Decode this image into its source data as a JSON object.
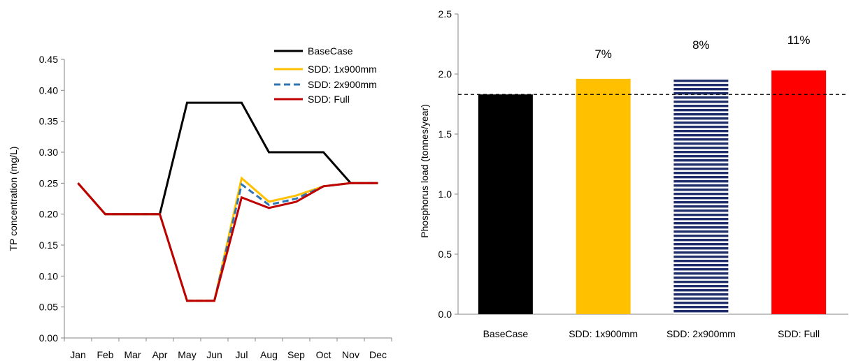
{
  "chart_data": [
    {
      "type": "line",
      "ylabel": "TP concentration (mg/L)",
      "ylim": [
        0,
        0.45
      ],
      "yticks": [
        "0.00",
        "0.05",
        "0.10",
        "0.15",
        "0.20",
        "0.25",
        "0.30",
        "0.35",
        "0.40",
        "0.45"
      ],
      "categories": [
        "Jan",
        "Feb",
        "Mar",
        "Apr",
        "May",
        "Jun",
        "Jul",
        "Aug",
        "Sep",
        "Oct",
        "Nov",
        "Dec"
      ],
      "legend_position": "top-right",
      "series": [
        {
          "name": "BaseCase",
          "color": "#000000",
          "dash": "solid",
          "values": [
            0.25,
            0.2,
            0.2,
            0.2,
            0.38,
            0.38,
            0.38,
            0.3,
            0.3,
            0.3,
            0.25,
            0.25
          ]
        },
        {
          "name": "SDD: 1x900mm",
          "color": "#FFC000",
          "dash": "solid",
          "values": [
            0.25,
            0.2,
            0.2,
            0.2,
            0.06,
            0.06,
            0.258,
            0.22,
            0.23,
            0.245,
            0.25,
            0.25
          ]
        },
        {
          "name": "SDD: 2x900mm",
          "color": "#2E75B6",
          "dash": "dashed",
          "values": [
            0.25,
            0.2,
            0.2,
            0.2,
            0.06,
            0.06,
            0.248,
            0.215,
            0.225,
            0.245,
            0.25,
            0.25
          ]
        },
        {
          "name": "SDD: Full",
          "color": "#C00000",
          "dash": "solid",
          "values": [
            0.25,
            0.2,
            0.2,
            0.2,
            0.06,
            0.06,
            0.227,
            0.21,
            0.22,
            0.245,
            0.25,
            0.25
          ]
        }
      ]
    },
    {
      "type": "bar",
      "ylabel": "Phosphorus load (tonnes/year)",
      "ylim": [
        0,
        2.5
      ],
      "yticks": [
        "0.0",
        "0.5",
        "1.0",
        "1.5",
        "2.0",
        "2.5"
      ],
      "categories": [
        "BaseCase",
        "SDD: 1x900mm",
        "SDD: 2x900mm",
        "SDD: Full"
      ],
      "values": [
        1.83,
        1.96,
        1.96,
        2.03
      ],
      "labels": [
        "",
        "7%",
        "8%",
        "11%"
      ],
      "colors": [
        "#000000",
        "#FFC000",
        "#1F2D6B",
        "#FF0000"
      ],
      "patterns": [
        "solid",
        "solid",
        "horizontal-stripes",
        "solid"
      ],
      "reference_line": 1.83
    }
  ]
}
